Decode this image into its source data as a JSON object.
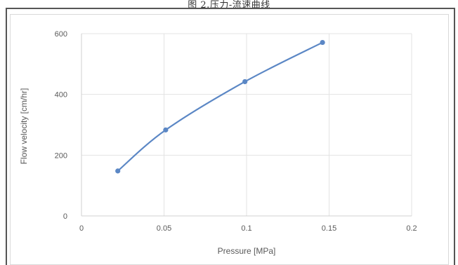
{
  "caption": "图 2.压力-流速曲线",
  "chart_data": {
    "type": "line",
    "title": "",
    "xlabel": "Pressure [MPa]",
    "ylabel": "Flow velocity  [cm/hr]",
    "xlim": [
      0,
      0.2
    ],
    "ylim": [
      0,
      600
    ],
    "xticks": [
      0,
      0.05,
      0.1,
      0.15,
      0.2
    ],
    "xtick_labels": [
      "0",
      "0.05",
      "0.1",
      "0.15",
      "0.2"
    ],
    "yticks": [
      0,
      200,
      400,
      600
    ],
    "ytick_labels": [
      "0",
      "200",
      "400",
      "600"
    ],
    "grid": true,
    "smooth": true,
    "series": [
      {
        "color": "#5b87c5",
        "x": [
          0.022,
          0.051,
          0.099,
          0.146
        ],
        "y": [
          148,
          283,
          442,
          571
        ]
      }
    ]
  }
}
